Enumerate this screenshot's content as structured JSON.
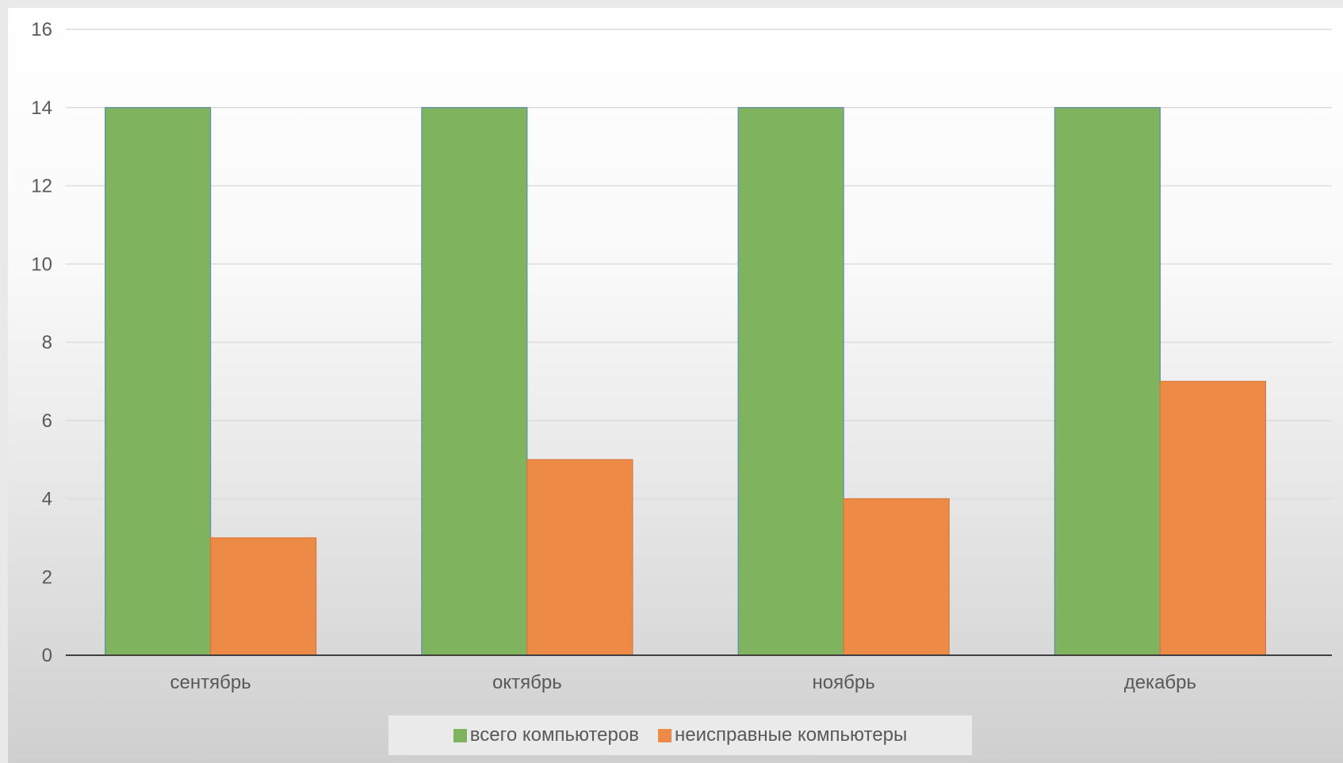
{
  "chart_data": {
    "type": "bar",
    "title": "",
    "xlabel": "",
    "ylabel": "",
    "categories": [
      "сентябрь",
      "октябрь",
      "ноябрь",
      "декабрь"
    ],
    "series": [
      {
        "name": "всего компьютеров",
        "values": [
          14,
          14,
          14,
          14
        ],
        "color": "#7fb35e"
      },
      {
        "name": "неисправные компьютеры",
        "values": [
          3,
          5,
          4,
          7
        ],
        "color": "#ec8a46"
      }
    ],
    "ylim": [
      0,
      16
    ],
    "yticks": [
      0,
      2,
      4,
      6,
      8,
      10,
      12,
      14,
      16
    ],
    "grid": true,
    "legend_position": "bottom"
  }
}
